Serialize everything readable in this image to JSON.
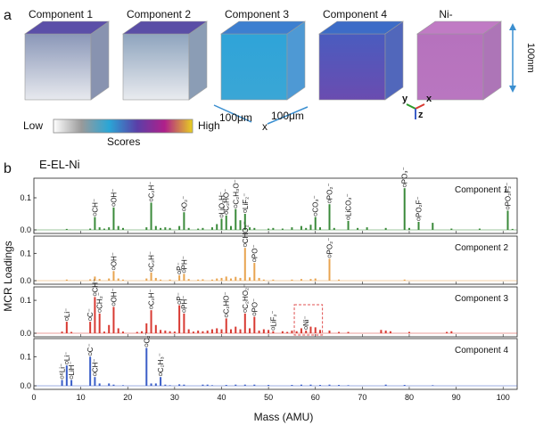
{
  "panel_a": {
    "label": "a",
    "cubes": [
      {
        "title": "Component 1",
        "top": "#5b4fa8",
        "front": "#8a97b8",
        "side": "#7c88a8",
        "bottom_fade": "#e7e9ee"
      },
      {
        "title": "Component 2",
        "top": "#5a4ea6",
        "front": "#8ea4be",
        "side": "#7f93ad",
        "bottom_fade": "#e9ebef"
      },
      {
        "title": "Component 3",
        "top": "#3d7fd0",
        "front": "#2fa4d8",
        "side": "#3b8fd0",
        "bottom_fade": "#3aa6d6"
      },
      {
        "title": "Component 4",
        "top": "#3d6cc7",
        "front": "#4a5cbf",
        "side": "#3f57b4",
        "bottom_fade": "#6a4cb0"
      },
      {
        "title": "Ni-",
        "top": "#c07bc4",
        "front": "#b672bd",
        "side": "#a567b0",
        "bottom_fade": "#b976c0"
      }
    ],
    "dim_x": "100μm",
    "dim_y": "100μm",
    "axis_x": "x",
    "dim_z": "100nm",
    "triad": {
      "y": "y",
      "x": "x",
      "z": "z"
    },
    "colorbar": {
      "low": "Low",
      "high": "High",
      "title": "Scores",
      "stops": [
        "#ffffff",
        "#9a9a9a",
        "#2aa6d6",
        "#5a3fa8",
        "#b0208a",
        "#e8d020"
      ]
    }
  },
  "panel_b": {
    "label": "b",
    "title": "E-EL-Ni",
    "ylabel": "MCR Loadings",
    "xlabel": "Mass (AMU)"
  },
  "chart_data": {
    "type": "bar",
    "title": "E-EL-Ni",
    "xlabel": "Mass (AMU)",
    "ylabel": "MCR Loadings",
    "xlim": [
      0,
      103
    ],
    "xticks": [
      0,
      10,
      20,
      30,
      40,
      50,
      60,
      70,
      80,
      90,
      100
    ],
    "series": [
      {
        "name": "Component 1",
        "color": "#3a8a3a",
        "ymax": 0.15,
        "yticks": [
          0.0,
          0.1
        ],
        "peaks": [
          [
            7,
            0.003
          ],
          [
            12,
            0.004
          ],
          [
            13,
            0.04
          ],
          [
            14,
            0.008
          ],
          [
            15,
            0.004
          ],
          [
            16,
            0.008
          ],
          [
            17,
            0.07
          ],
          [
            18,
            0.012
          ],
          [
            19,
            0.006
          ],
          [
            24,
            0.008
          ],
          [
            25,
            0.085
          ],
          [
            26,
            0.012
          ],
          [
            27,
            0.006
          ],
          [
            28,
            0.008
          ],
          [
            29,
            0.006
          ],
          [
            31,
            0.012
          ],
          [
            32,
            0.055
          ],
          [
            33,
            0.006
          ],
          [
            35,
            0.004
          ],
          [
            36,
            0.006
          ],
          [
            38,
            0.008
          ],
          [
            39,
            0.018
          ],
          [
            40,
            0.035
          ],
          [
            41,
            0.045
          ],
          [
            42,
            0.012
          ],
          [
            43,
            0.065
          ],
          [
            44,
            0.03
          ],
          [
            45,
            0.05
          ],
          [
            46,
            0.008
          ],
          [
            47,
            0.006
          ],
          [
            50,
            0.004
          ],
          [
            51,
            0.006
          ],
          [
            53,
            0.004
          ],
          [
            55,
            0.008
          ],
          [
            57,
            0.012
          ],
          [
            58,
            0.006
          ],
          [
            59,
            0.016
          ],
          [
            60,
            0.04
          ],
          [
            61,
            0.008
          ],
          [
            63,
            0.08
          ],
          [
            64,
            0.006
          ],
          [
            67,
            0.028
          ],
          [
            69,
            0.006
          ],
          [
            71,
            0.008
          ],
          [
            75,
            0.006
          ],
          [
            79,
            0.13
          ],
          [
            80,
            0.006
          ],
          [
            82,
            0.025
          ],
          [
            85,
            0.022
          ],
          [
            89,
            0.004
          ],
          [
            95,
            0.004
          ],
          [
            101,
            0.06
          ],
          [
            102,
            0.003
          ]
        ],
        "annotations": [
          {
            "x": 13,
            "text": "CH⁻"
          },
          {
            "x": 17,
            "text": "OH⁻"
          },
          {
            "x": 25,
            "text": "C₂H⁻"
          },
          {
            "x": 32,
            "text": "O₂⁻"
          },
          {
            "x": 40,
            "text": "LiO₂H⁻"
          },
          {
            "x": 41,
            "text": "C₂HO⁻"
          },
          {
            "x": 43,
            "text": "C₂H₃O⁻"
          },
          {
            "x": 45,
            "text": "LiF₂⁻"
          },
          {
            "x": 60,
            "text": "CO₃⁻"
          },
          {
            "x": 63,
            "text": "PO₂⁻"
          },
          {
            "x": 67,
            "text": "LiCO₃⁻"
          },
          {
            "x": 79,
            "text": "PO₃⁻"
          },
          {
            "x": 82,
            "text": "PO₂F⁻"
          },
          {
            "x": 101,
            "text": "PO₂F₂⁻"
          }
        ]
      },
      {
        "name": "Component 2",
        "color": "#e8a450",
        "ymax": 0.15,
        "yticks": [
          0.0,
          0.1
        ],
        "peaks": [
          [
            7,
            0.004
          ],
          [
            12,
            0.005
          ],
          [
            13,
            0.015
          ],
          [
            14,
            0.006
          ],
          [
            16,
            0.008
          ],
          [
            17,
            0.035
          ],
          [
            18,
            0.008
          ],
          [
            19,
            0.004
          ],
          [
            24,
            0.008
          ],
          [
            25,
            0.03
          ],
          [
            26,
            0.01
          ],
          [
            27,
            0.004
          ],
          [
            29,
            0.004
          ],
          [
            31,
            0.02
          ],
          [
            32,
            0.025
          ],
          [
            33,
            0.006
          ],
          [
            35,
            0.004
          ],
          [
            36,
            0.005
          ],
          [
            38,
            0.004
          ],
          [
            39,
            0.008
          ],
          [
            40,
            0.01
          ],
          [
            41,
            0.015
          ],
          [
            42,
            0.008
          ],
          [
            43,
            0.014
          ],
          [
            44,
            0.01
          ],
          [
            45,
            0.12
          ],
          [
            46,
            0.012
          ],
          [
            47,
            0.065
          ],
          [
            48,
            0.01
          ],
          [
            49,
            0.004
          ],
          [
            51,
            0.004
          ],
          [
            55,
            0.004
          ],
          [
            57,
            0.006
          ],
          [
            59,
            0.006
          ],
          [
            60,
            0.008
          ],
          [
            63,
            0.08
          ],
          [
            65,
            0.004
          ],
          [
            79,
            0.004
          ]
        ],
        "annotations": [
          {
            "x": 17,
            "text": "OH⁻"
          },
          {
            "x": 25,
            "text": "C₂H⁻"
          },
          {
            "x": 31,
            "text": "P⁻"
          },
          {
            "x": 32,
            "text": "PH⁻"
          },
          {
            "x": 45,
            "text": "CHO₂⁻"
          },
          {
            "x": 47,
            "text": "PO⁻"
          },
          {
            "x": 63,
            "text": "PO₂⁻"
          }
        ]
      },
      {
        "name": "Component 3",
        "color": "#d83a32",
        "ymax": 0.13,
        "yticks": [
          0.0,
          0.1
        ],
        "peaks": [
          [
            6,
            0.005
          ],
          [
            7,
            0.035
          ],
          [
            8,
            0.004
          ],
          [
            12,
            0.035
          ],
          [
            13,
            0.11
          ],
          [
            14,
            0.06
          ],
          [
            15,
            0.005
          ],
          [
            16,
            0.025
          ],
          [
            17,
            0.08
          ],
          [
            18,
            0.015
          ],
          [
            19,
            0.005
          ],
          [
            22,
            0.004
          ],
          [
            23,
            0.006
          ],
          [
            24,
            0.03
          ],
          [
            25,
            0.07
          ],
          [
            26,
            0.025
          ],
          [
            27,
            0.01
          ],
          [
            28,
            0.008
          ],
          [
            29,
            0.006
          ],
          [
            30,
            0.005
          ],
          [
            31,
            0.085
          ],
          [
            32,
            0.06
          ],
          [
            33,
            0.012
          ],
          [
            34,
            0.005
          ],
          [
            35,
            0.008
          ],
          [
            36,
            0.006
          ],
          [
            37,
            0.008
          ],
          [
            38,
            0.012
          ],
          [
            39,
            0.015
          ],
          [
            40,
            0.012
          ],
          [
            41,
            0.045
          ],
          [
            42,
            0.012
          ],
          [
            43,
            0.02
          ],
          [
            44,
            0.012
          ],
          [
            45,
            0.06
          ],
          [
            46,
            0.015
          ],
          [
            47,
            0.05
          ],
          [
            48,
            0.008
          ],
          [
            49,
            0.012
          ],
          [
            50,
            0.01
          ],
          [
            51,
            0.006
          ],
          [
            53,
            0.006
          ],
          [
            54,
            0.004
          ],
          [
            55,
            0.008
          ],
          [
            56,
            0.006
          ],
          [
            57,
            0.015
          ],
          [
            58,
            0.008
          ],
          [
            59,
            0.02
          ],
          [
            60,
            0.018
          ],
          [
            61,
            0.01
          ],
          [
            63,
            0.008
          ],
          [
            65,
            0.004
          ],
          [
            67,
            0.004
          ],
          [
            74,
            0.01
          ],
          [
            75,
            0.008
          ],
          [
            76,
            0.006
          ],
          [
            80,
            0.004
          ],
          [
            88,
            0.004
          ],
          [
            89,
            0.006
          ]
        ],
        "annotations": [
          {
            "x": 7,
            "text": "Li⁻"
          },
          {
            "x": 12,
            "text": "C⁻"
          },
          {
            "x": 13,
            "text": "CH⁻"
          },
          {
            "x": 14,
            "text": "CH₂⁻"
          },
          {
            "x": 17,
            "text": "OH⁻"
          },
          {
            "x": 25,
            "text": "C₂H⁻"
          },
          {
            "x": 31,
            "text": "P⁻"
          },
          {
            "x": 32,
            "text": "PH⁻"
          },
          {
            "x": 41,
            "text": "C₂HO⁻"
          },
          {
            "x": 45,
            "text": "C₂HO₂⁻"
          },
          {
            "x": 47,
            "text": "PO⁻"
          },
          {
            "x": 51,
            "text": "LiF₂⁻"
          },
          {
            "x": 58,
            "text": "Ni⁻"
          }
        ],
        "highlight_box": [
          55.5,
          61.5
        ]
      },
      {
        "name": "Component 4",
        "color": "#3a5ec8",
        "ymax": 0.15,
        "yticks": [
          0.0,
          0.1
        ],
        "peaks": [
          [
            6,
            0.02
          ],
          [
            7,
            0.07
          ],
          [
            8,
            0.02
          ],
          [
            12,
            0.1
          ],
          [
            13,
            0.03
          ],
          [
            14,
            0.008
          ],
          [
            16,
            0.008
          ],
          [
            17,
            0.004
          ],
          [
            19,
            0.002
          ],
          [
            24,
            0.13
          ],
          [
            25,
            0.008
          ],
          [
            26,
            0.008
          ],
          [
            27,
            0.03
          ],
          [
            28,
            0.004
          ],
          [
            29,
            0.002
          ],
          [
            31,
            0.005
          ],
          [
            32,
            0.004
          ],
          [
            36,
            0.004
          ],
          [
            37,
            0.004
          ],
          [
            38,
            0.002
          ],
          [
            41,
            0.003
          ],
          [
            43,
            0.004
          ],
          [
            45,
            0.004
          ],
          [
            47,
            0.004
          ],
          [
            50,
            0.003
          ],
          [
            55,
            0.003
          ],
          [
            57,
            0.004
          ],
          [
            59,
            0.004
          ],
          [
            61,
            0.003
          ],
          [
            63,
            0.004
          ],
          [
            65,
            0.003
          ],
          [
            67,
            0.002
          ],
          [
            75,
            0.004
          ],
          [
            79,
            0.003
          ],
          [
            85,
            0.002
          ]
        ],
        "annotations": [
          {
            "x": 6,
            "text": "⁶Li⁻"
          },
          {
            "x": 7,
            "text": "Li⁻"
          },
          {
            "x": 8,
            "text": "LiH⁻"
          },
          {
            "x": 12,
            "text": "C⁻"
          },
          {
            "x": 13,
            "text": "CH⁻"
          },
          {
            "x": 24,
            "text": "C₂⁻"
          },
          {
            "x": 27,
            "text": "C₂H₃⁻"
          }
        ]
      }
    ]
  }
}
